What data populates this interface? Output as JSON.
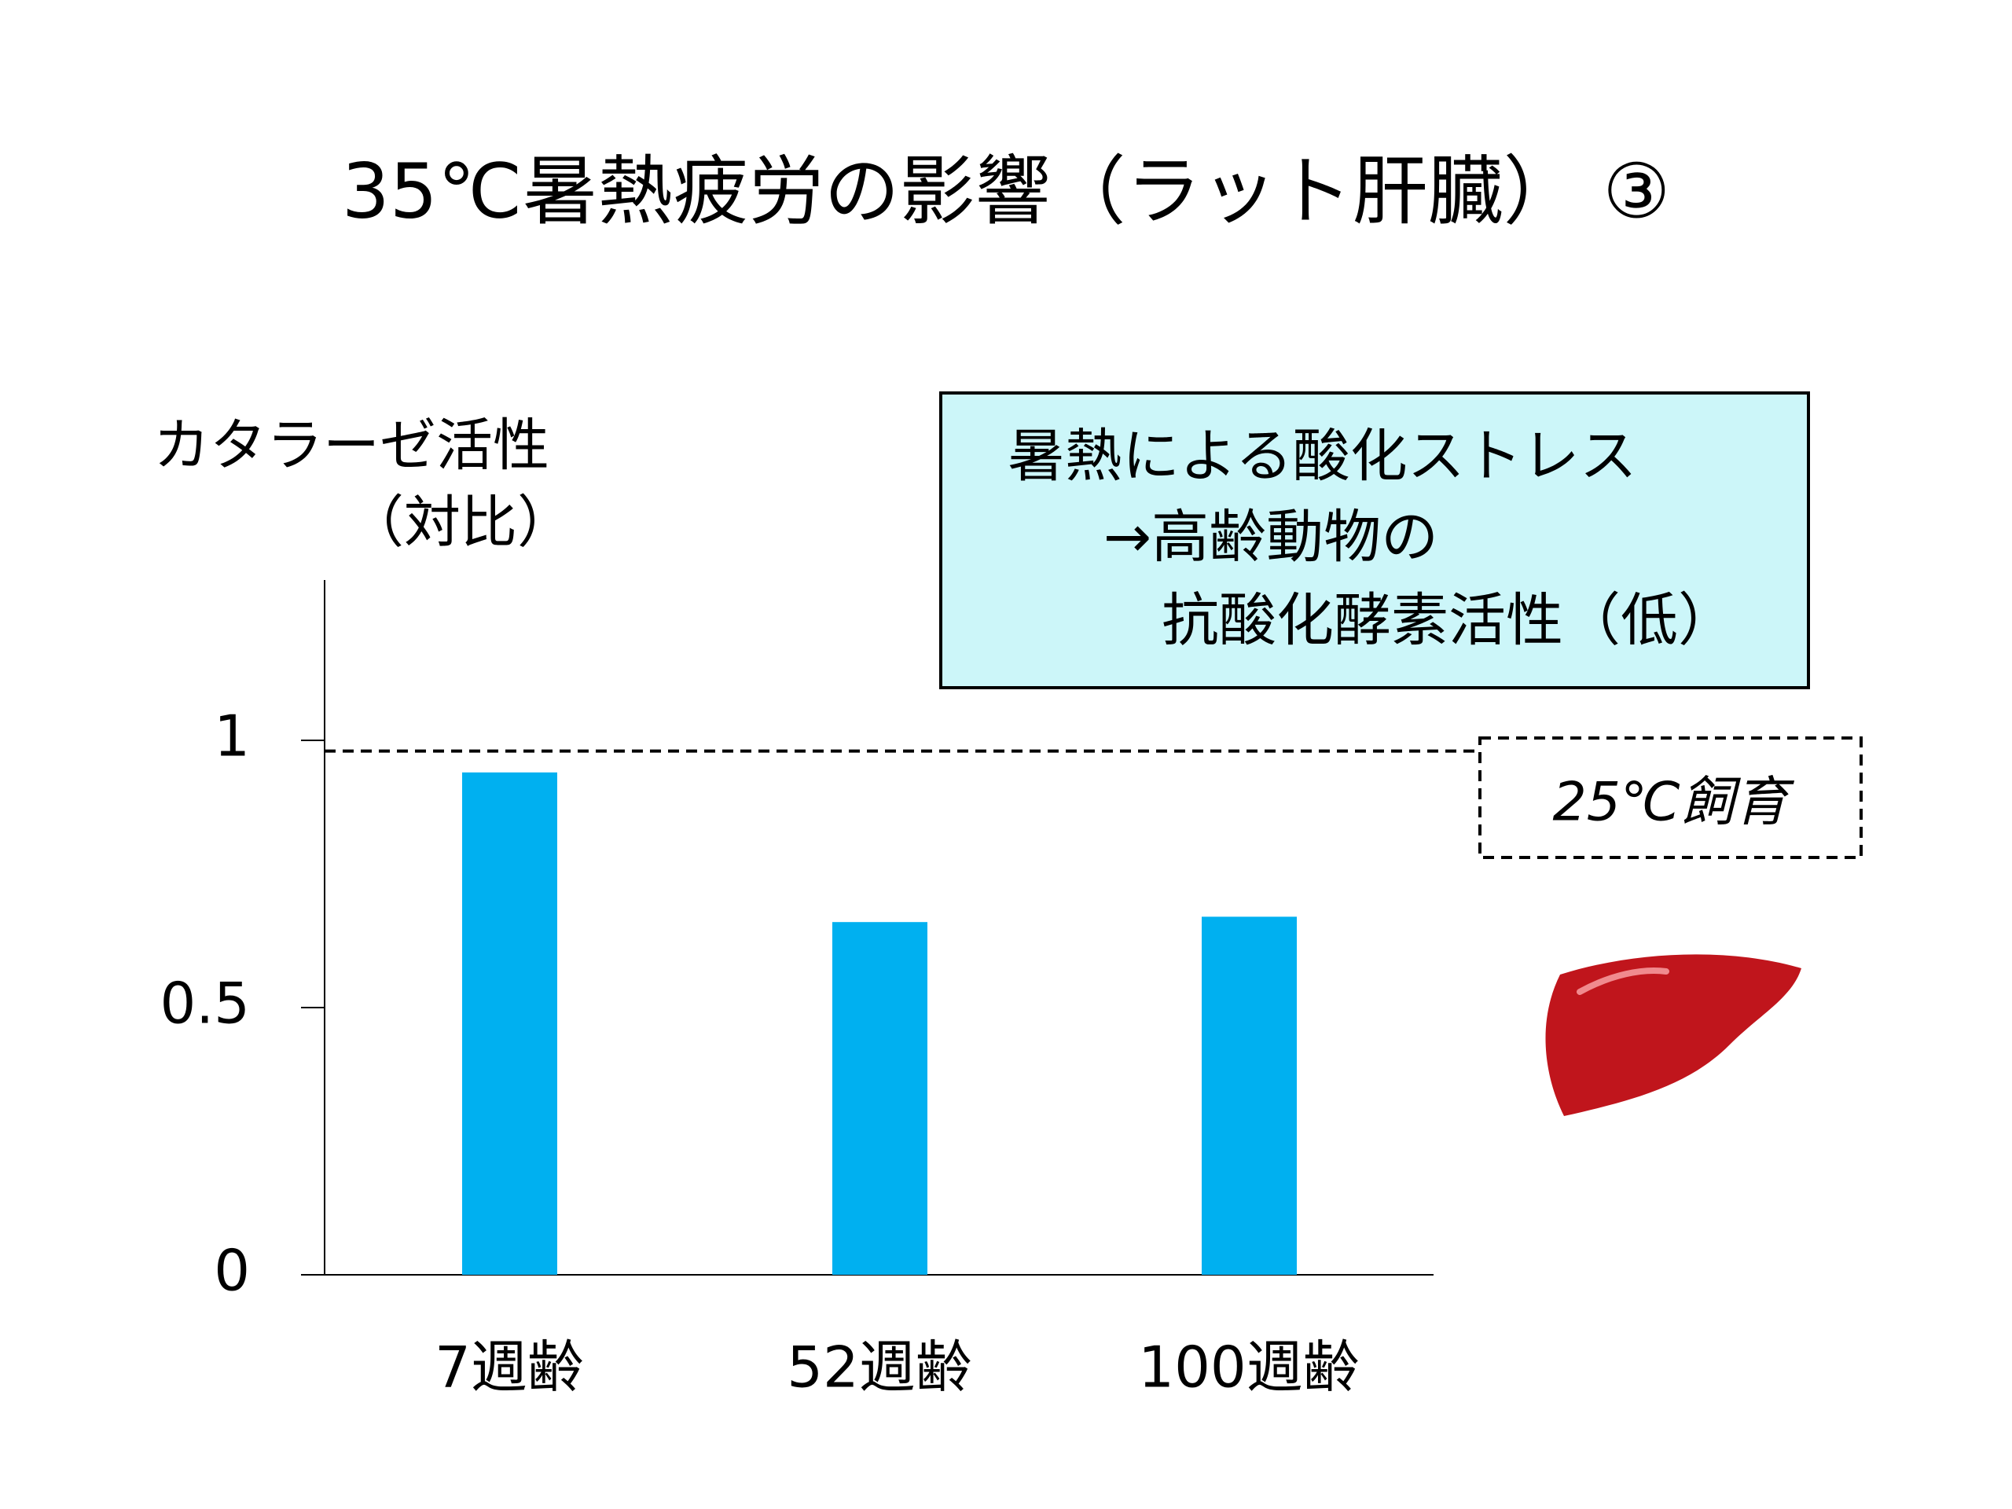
{
  "chart_data": {
    "type": "bar",
    "title": "35℃暑熱疲労の影響（ラット肝臓） ③",
    "y_label": [
      "カタラーゼ活性",
      "（対比）"
    ],
    "categories": [
      "7週齢",
      "52週齢",
      "100週齢"
    ],
    "values": [
      0.94,
      0.66,
      0.67
    ],
    "color": "#00b0f0",
    "ylim": [
      0,
      1.3
    ],
    "yticks": [
      0,
      0.5,
      1
    ],
    "reference_line": {
      "value": 0.98,
      "label": "25℃飼育"
    },
    "annotation": [
      "暑熱による酸化ストレス",
      "→高齢動物の",
      "抗酸化酵素活性（低）"
    ]
  }
}
